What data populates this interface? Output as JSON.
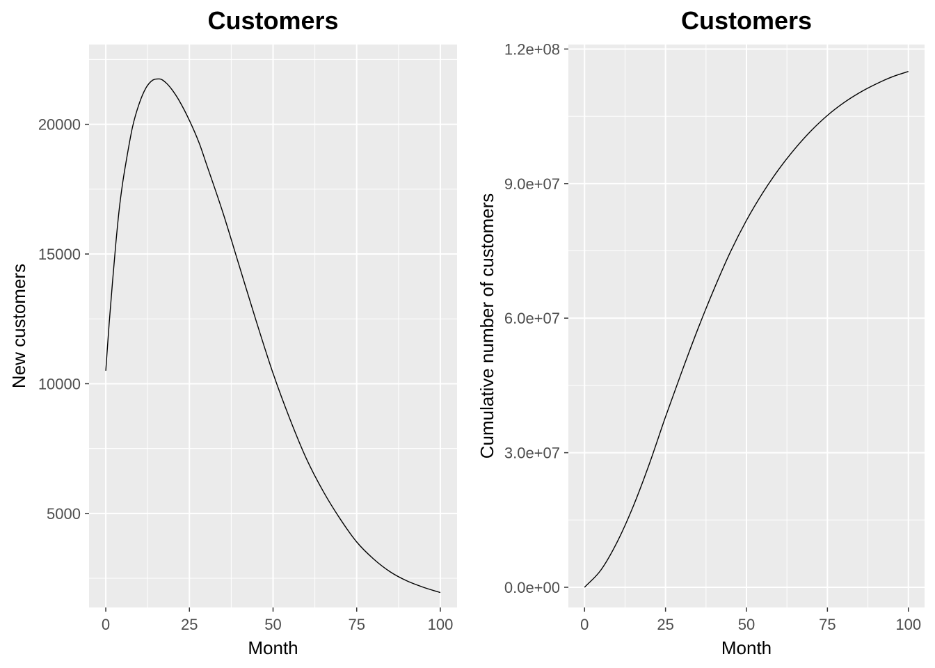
{
  "chart_data": [
    {
      "type": "line",
      "title": "Customers",
      "xlabel": "Month",
      "ylabel": "New customers",
      "xlim": [
        -5,
        105
      ],
      "ylim": [
        1375,
        23075
      ],
      "x_ticks": [
        0,
        25,
        50,
        75,
        100
      ],
      "x_tick_labels": [
        "0",
        "25",
        "50",
        "75",
        "100"
      ],
      "y_ticks": [
        5000,
        10000,
        15000,
        20000
      ],
      "y_tick_labels": [
        "5000",
        "10000",
        "15000",
        "20000"
      ],
      "grid": true,
      "series": [
        {
          "color": "#000000",
          "x": [
            0,
            1,
            2,
            3,
            4,
            5,
            6,
            8,
            10,
            12,
            14,
            16,
            18,
            20,
            22,
            25,
            28,
            30,
            35,
            40,
            45,
            50,
            55,
            60,
            65,
            70,
            75,
            80,
            85,
            90,
            95,
            100
          ],
          "values": [
            10500,
            12300,
            13900,
            15400,
            16700,
            17700,
            18500,
            19900,
            20800,
            21400,
            21700,
            21750,
            21600,
            21300,
            20900,
            20150,
            19250,
            18500,
            16600,
            14500,
            12400,
            10400,
            8650,
            7100,
            5850,
            4800,
            3900,
            3250,
            2750,
            2400,
            2150,
            1950
          ]
        }
      ]
    },
    {
      "type": "line",
      "title": "Customers",
      "xlabel": "Month",
      "ylabel": "Cumulative number of customers",
      "xlim": [
        -5,
        105
      ],
      "ylim": [
        -4500000,
        121000000
      ],
      "x_ticks": [
        0,
        25,
        50,
        75,
        100
      ],
      "x_tick_labels": [
        "0",
        "25",
        "50",
        "75",
        "100"
      ],
      "y_ticks": [
        0,
        30000000,
        60000000,
        90000000,
        120000000
      ],
      "y_tick_labels": [
        "0.0e+00",
        "3.0e+07",
        "6.0e+07",
        "9.0e+07",
        "1.2e+08"
      ],
      "grid": true,
      "series": [
        {
          "color": "#000000",
          "x": [
            0,
            5,
            10,
            15,
            20,
            25,
            30,
            35,
            40,
            45,
            50,
            55,
            60,
            65,
            70,
            75,
            80,
            85,
            90,
            95,
            100
          ],
          "values": [
            0,
            3800000,
            10000000,
            18000000,
            27500000,
            38000000,
            48000000,
            57600000,
            66500000,
            74700000,
            81800000,
            87900000,
            93200000,
            97800000,
            101800000,
            105200000,
            108000000,
            110300000,
            112200000,
            113800000,
            115000000
          ]
        }
      ]
    }
  ]
}
